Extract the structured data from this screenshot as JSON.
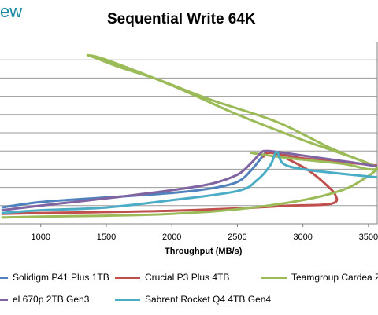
{
  "header": {
    "logo_text": "ew"
  },
  "chart_data": {
    "type": "line",
    "title": "Sequential Write 64K",
    "xlabel": "Throughput (MB/s)",
    "ylabel": "",
    "x_ticks": [
      "1000",
      "1500",
      "2000",
      "2500",
      "3000",
      "3500"
    ],
    "xlim": [
      689,
      3567
    ],
    "ylim": [
      0,
      10
    ],
    "grid": true,
    "legend_position": "bottom",
    "series": [
      {
        "name": "Solidigm P41 Plus 1TB",
        "color": "#4f81bd",
        "points": [
          [
            700,
            0.9
          ],
          [
            1000,
            1.2
          ],
          [
            1500,
            1.45
          ],
          [
            2000,
            1.7
          ],
          [
            2300,
            1.95
          ],
          [
            2500,
            2.3
          ],
          [
            2600,
            2.9
          ],
          [
            2680,
            3.6
          ],
          [
            2720,
            3.95
          ]
        ]
      },
      {
        "name": "Crucial P3 Plus 4TB",
        "color": "#c0504d",
        "points": [
          [
            700,
            0.55
          ],
          [
            1000,
            0.6
          ],
          [
            1500,
            0.65
          ],
          [
            2000,
            0.72
          ],
          [
            2500,
            0.85
          ],
          [
            2900,
            1.0
          ],
          [
            3150,
            1.05
          ],
          [
            3250,
            1.2
          ],
          [
            3250,
            1.55
          ],
          [
            3200,
            2.0
          ],
          [
            3050,
            2.9
          ],
          [
            2900,
            3.5
          ],
          [
            2750,
            3.95
          ],
          [
            2700,
            3.7
          ],
          [
            2750,
            3.9
          ],
          [
            3000,
            3.6
          ],
          [
            3300,
            3.4
          ],
          [
            3567,
            3.2
          ]
        ]
      },
      {
        "name": "Teamgroup Cardea Z",
        "color": "#9bbb59",
        "points": [
          [
            700,
            0.35
          ],
          [
            1000,
            0.4
          ],
          [
            1500,
            0.45
          ],
          [
            2000,
            0.55
          ],
          [
            2500,
            0.8
          ],
          [
            3000,
            1.3
          ],
          [
            3300,
            1.85
          ],
          [
            3450,
            2.4
          ],
          [
            3550,
            2.9
          ],
          [
            3567,
            3.1
          ],
          [
            3500,
            3.3
          ],
          [
            3200,
            4.2
          ],
          [
            2800,
            5.6
          ],
          [
            2300,
            6.8
          ],
          [
            1900,
            7.9
          ],
          [
            1600,
            8.6
          ],
          [
            1420,
            9.1
          ],
          [
            1360,
            9.25
          ],
          [
            1500,
            9.0
          ],
          [
            2000,
            7.6
          ],
          [
            2500,
            6.0
          ],
          [
            3000,
            4.6
          ],
          [
            3400,
            3.6
          ],
          [
            3567,
            3.1
          ],
          [
            3500,
            3.0
          ],
          [
            3300,
            3.3
          ],
          [
            2900,
            3.6
          ],
          [
            2600,
            3.9
          ]
        ]
      },
      {
        "name": "el 670p 2TB Gen3",
        "color": "#8064a2",
        "points": [
          [
            700,
            0.75
          ],
          [
            1000,
            1.0
          ],
          [
            1500,
            1.4
          ],
          [
            2000,
            1.85
          ],
          [
            2300,
            2.2
          ],
          [
            2500,
            2.7
          ],
          [
            2600,
            3.3
          ],
          [
            2680,
            3.9
          ],
          [
            2720,
            4.0
          ],
          [
            2800,
            3.95
          ],
          [
            3000,
            3.75
          ],
          [
            3200,
            3.55
          ],
          [
            3400,
            3.35
          ],
          [
            3567,
            3.15
          ]
        ]
      },
      {
        "name": "Sabrent Rocket Q4 4TB Gen4",
        "color": "#4bacc6",
        "points": [
          [
            700,
            0.6
          ],
          [
            1000,
            0.75
          ],
          [
            1500,
            0.9
          ],
          [
            2000,
            1.3
          ],
          [
            2500,
            1.8
          ],
          [
            2650,
            2.4
          ],
          [
            2750,
            3.2
          ],
          [
            2800,
            3.95
          ],
          [
            2850,
            3.3
          ],
          [
            3000,
            3.0
          ],
          [
            3300,
            2.75
          ],
          [
            3567,
            2.55
          ]
        ]
      }
    ]
  }
}
